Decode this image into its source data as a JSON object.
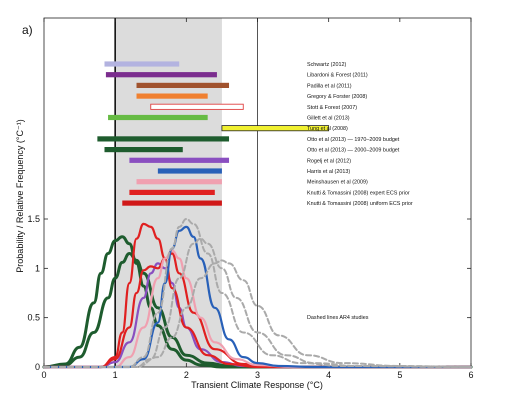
{
  "chart_data": {
    "type": "line",
    "panel_label": "a)",
    "xlabel": "Transient Climate Response (°C)",
    "ylabel": "Probability / Relative Frequency (°C⁻¹)",
    "xlim": [
      0,
      6
    ],
    "ylim": [
      0,
      1.5
    ],
    "x_ticks": [
      {
        "value": 0,
        "label": "0"
      },
      {
        "value": 1,
        "label": "1"
      },
      {
        "value": 2,
        "label": "2"
      },
      {
        "value": 3,
        "label": "3"
      },
      {
        "value": 4,
        "label": "4"
      },
      {
        "value": 5,
        "label": "5"
      },
      {
        "value": 6,
        "label": "6"
      }
    ],
    "y_ticks": [
      {
        "value": 0,
        "label": "0"
      },
      {
        "value": 0.5,
        "label": "0.5"
      },
      {
        "value": 1,
        "label": "1"
      },
      {
        "value": 1.5,
        "label": "1.5"
      }
    ],
    "likely_range": [
      1,
      2.5
    ],
    "upper_bound_line": 3,
    "note": "Dashed lines AR4 studies",
    "ranges": [
      {
        "label": "Schwartz (2012)",
        "lo": 0.85,
        "hi": 1.9,
        "color": "#b3b3e0",
        "fill": true
      },
      {
        "label": "Libardoni & Forest (2011)",
        "lo": 0.87,
        "hi": 2.43,
        "color": "#7b2d8e",
        "fill": true
      },
      {
        "label": "Padilla et al (2011)",
        "lo": 1.3,
        "hi": 2.6,
        "color": "#a0522d",
        "fill": true
      },
      {
        "label": "Gregory & Forster (2008)",
        "lo": 1.3,
        "hi": 2.3,
        "color": "#f08030",
        "fill": true
      },
      {
        "label": "Stott & Forest (2007)",
        "lo": 1.5,
        "hi": 2.8,
        "color": "#e04040",
        "fill": false
      },
      {
        "label": "Gillett et al (2013)",
        "lo": 0.9,
        "hi": 2.3,
        "color": "#66bb44",
        "fill": true
      },
      {
        "label": "Tung et al (2008)",
        "lo": 2.5,
        "hi": 4.0,
        "color": "#f0f030",
        "fill": true
      },
      {
        "label": "Otto et al (2013) — 1970–2009 budget",
        "lo": 0.75,
        "hi": 2.6,
        "color": "#1e5c2e",
        "fill": true
      },
      {
        "label": "Otto et al (2013) — 2000–2009 budget",
        "lo": 0.85,
        "hi": 1.95,
        "color": "#1e5c2e",
        "fill": true
      },
      {
        "label": "Rogelj et al (2012)",
        "lo": 1.2,
        "hi": 2.6,
        "color": "#8a4fc0",
        "fill": true
      },
      {
        "label": "Harris et al (2013)",
        "lo": 1.6,
        "hi": 2.5,
        "color": "#2860b8",
        "fill": true
      },
      {
        "label": "Meinshausen et al (2009)",
        "lo": 1.3,
        "hi": 2.5,
        "color": "#f0a0b0",
        "fill": true
      },
      {
        "label": "Knutti & Tomassini (2008) expert ECS prior",
        "lo": 1.2,
        "hi": 2.4,
        "color": "#e02020",
        "fill": true
      },
      {
        "label": "Knutti & Tomassini (2008) uniform ECS prior",
        "lo": 1.1,
        "hi": 2.5,
        "color": "#d01818",
        "fill": true
      }
    ],
    "pdf_series": [
      {
        "color": "#1e5c2e",
        "dashed": false,
        "width": 3,
        "x": [
          0,
          0.3,
          0.5,
          0.7,
          0.9,
          1.0,
          1.1,
          1.2,
          1.3,
          1.4,
          1.6,
          1.8,
          2.0,
          2.3,
          2.6,
          3.0,
          3.5,
          6
        ],
        "y": [
          0,
          0.02,
          0.1,
          0.35,
          0.7,
          0.9,
          1.06,
          1.15,
          1.08,
          0.95,
          0.6,
          0.3,
          0.12,
          0.04,
          0.01,
          0,
          0,
          0
        ]
      },
      {
        "color": "#1e5c2e",
        "dashed": false,
        "width": 3,
        "x": [
          0,
          0.3,
          0.5,
          0.7,
          0.8,
          0.9,
          1.0,
          1.1,
          1.2,
          1.3,
          1.4,
          1.5,
          1.6,
          1.8,
          2.0,
          2.2,
          2.5,
          3.0,
          6
        ],
        "y": [
          0,
          0.03,
          0.2,
          0.65,
          0.95,
          1.15,
          1.28,
          1.32,
          1.25,
          1.05,
          0.82,
          0.6,
          0.42,
          0.18,
          0.07,
          0.02,
          0,
          0,
          0
        ]
      },
      {
        "color": "#8a4fc0",
        "dashed": false,
        "width": 2.2,
        "x": [
          0,
          0.8,
          1.0,
          1.2,
          1.4,
          1.5,
          1.6,
          1.7,
          1.8,
          1.9,
          2.0,
          2.2,
          2.5,
          2.8,
          3.2,
          6
        ],
        "y": [
          0,
          0,
          0.05,
          0.25,
          0.7,
          0.95,
          1.05,
          1.0,
          0.85,
          0.6,
          0.4,
          0.18,
          0.05,
          0.01,
          0,
          0
        ]
      },
      {
        "color": "#e02020",
        "dashed": false,
        "width": 2.2,
        "x": [
          0,
          0.8,
          1.0,
          1.1,
          1.2,
          1.3,
          1.4,
          1.5,
          1.6,
          1.7,
          1.8,
          2.0,
          2.3,
          2.6,
          3.0,
          6
        ],
        "y": [
          0,
          0,
          0.1,
          0.35,
          0.85,
          1.3,
          1.45,
          1.42,
          1.3,
          1.1,
          0.8,
          0.4,
          0.12,
          0.03,
          0,
          0
        ]
      },
      {
        "color": "#e02020",
        "dashed": false,
        "width": 2.2,
        "x": [
          0,
          0.8,
          1.0,
          1.2,
          1.3,
          1.4,
          1.5,
          1.6,
          1.7,
          1.8,
          1.9,
          2.1,
          2.4,
          2.8,
          3.2,
          6
        ],
        "y": [
          0,
          0,
          0.08,
          0.4,
          0.75,
          0.98,
          1.02,
          1.0,
          1.1,
          1.15,
          0.95,
          0.55,
          0.18,
          0.03,
          0,
          0
        ]
      },
      {
        "color": "#f0a0b0",
        "dashed": false,
        "width": 2.2,
        "x": [
          0,
          1.0,
          1.2,
          1.4,
          1.6,
          1.7,
          1.8,
          1.9,
          2.0,
          2.2,
          2.4,
          2.7,
          3.0,
          3.5,
          6
        ],
        "y": [
          0,
          0,
          0.1,
          0.4,
          0.9,
          1.1,
          1.18,
          1.1,
          0.9,
          0.5,
          0.25,
          0.08,
          0.02,
          0,
          0
        ]
      },
      {
        "color": "#2860b8",
        "dashed": false,
        "width": 2.2,
        "x": [
          0,
          1.2,
          1.4,
          1.6,
          1.7,
          1.8,
          1.9,
          2.0,
          2.1,
          2.2,
          2.4,
          2.6,
          2.8,
          3.0,
          3.3,
          3.8,
          6
        ],
        "y": [
          0,
          0,
          0.08,
          0.45,
          0.85,
          1.2,
          1.38,
          1.42,
          1.32,
          1.1,
          0.6,
          0.28,
          0.1,
          0.04,
          0.01,
          0,
          0
        ]
      },
      {
        "color": "#aaaaaa",
        "dashed": true,
        "width": 2,
        "x": [
          0,
          1.2,
          1.4,
          1.6,
          1.8,
          1.9,
          2.0,
          2.1,
          2.3,
          2.5,
          2.8,
          3.2,
          3.6,
          4.2,
          6
        ],
        "y": [
          0,
          0,
          0.1,
          0.55,
          1.2,
          1.42,
          1.5,
          1.45,
          1.15,
          0.75,
          0.35,
          0.12,
          0.04,
          0.01,
          0
        ]
      },
      {
        "color": "#aaaaaa",
        "dashed": true,
        "width": 2,
        "x": [
          0,
          1.3,
          1.5,
          1.7,
          1.9,
          2.1,
          2.2,
          2.3,
          2.5,
          2.7,
          3.0,
          3.4,
          3.8,
          4.4,
          6
        ],
        "y": [
          0,
          0,
          0.08,
          0.4,
          0.9,
          1.25,
          1.3,
          1.25,
          1.0,
          0.7,
          0.35,
          0.12,
          0.04,
          0.01,
          0
        ]
      },
      {
        "color": "#aaaaaa",
        "dashed": true,
        "width": 2,
        "x": [
          0,
          1.3,
          1.6,
          1.8,
          2.0,
          2.2,
          2.4,
          2.5,
          2.6,
          2.8,
          3.0,
          3.3,
          3.7,
          4.2,
          5.0,
          6
        ],
        "y": [
          0,
          0,
          0.1,
          0.3,
          0.6,
          0.9,
          1.05,
          1.08,
          1.05,
          0.88,
          0.62,
          0.32,
          0.12,
          0.04,
          0.01,
          0
        ]
      }
    ]
  }
}
